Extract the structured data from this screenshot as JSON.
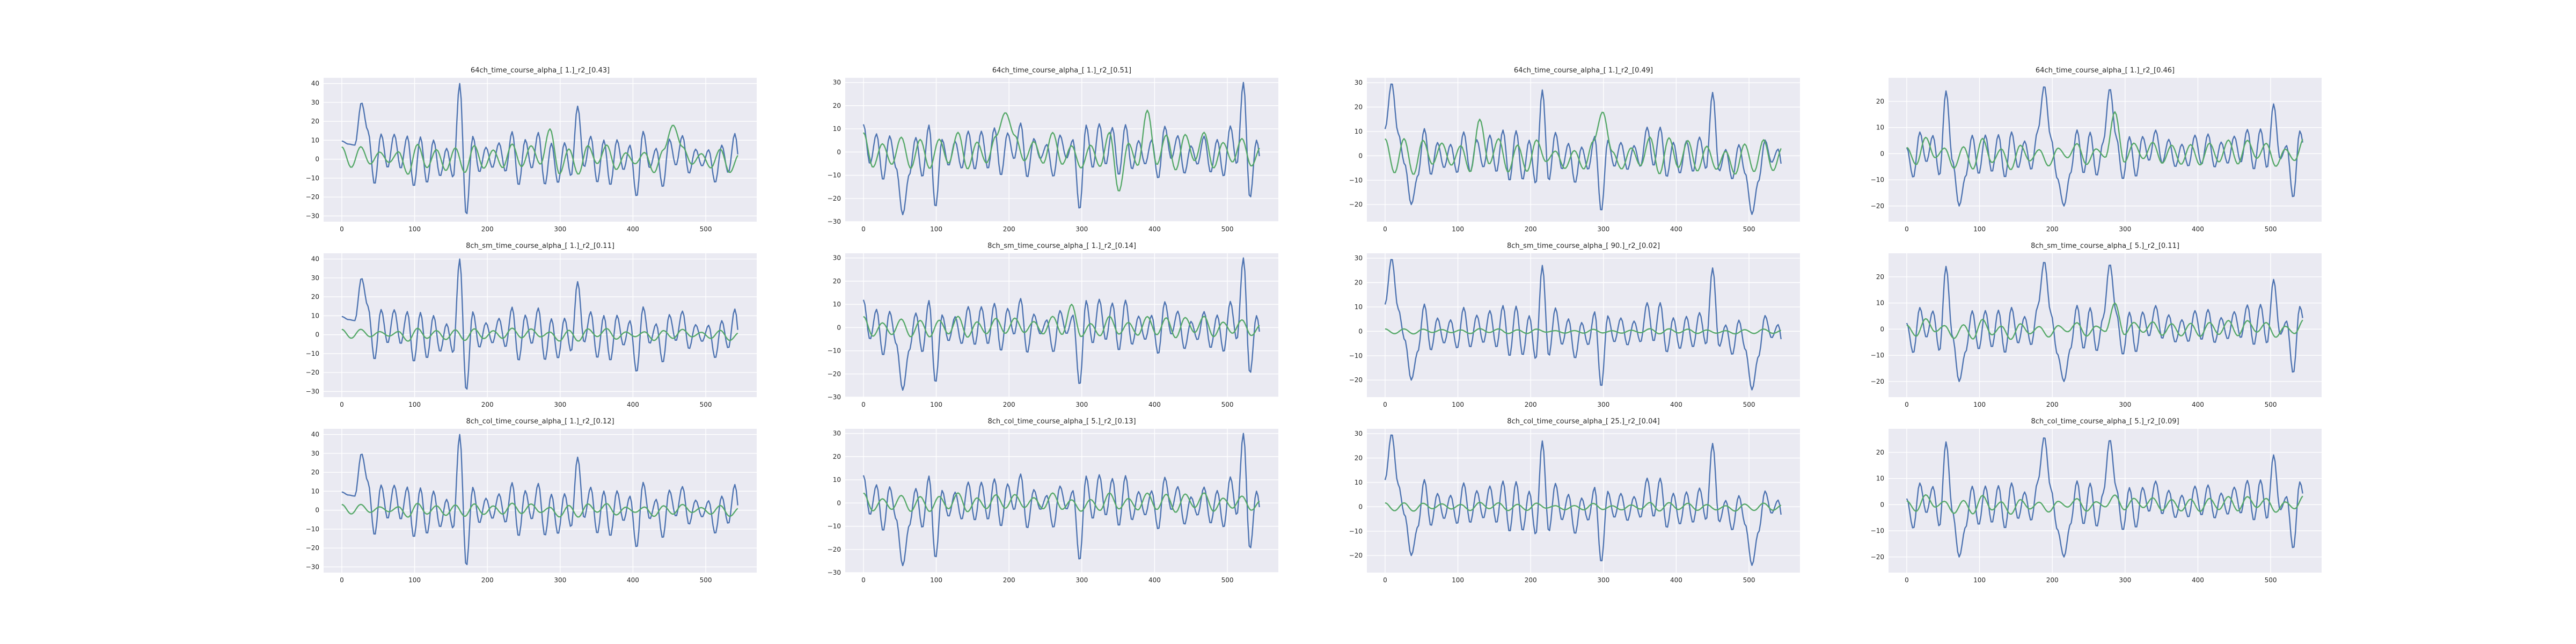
{
  "colors": {
    "blue": "#4c72b0",
    "green": "#55a868",
    "background": "#eaeaf2",
    "grid": "#ffffff"
  },
  "chart_data": [
    {
      "type": "line",
      "title": "64ch_time_course_alpha_[ 1.]_r2_[0.43]",
      "xlim": [
        0,
        545
      ],
      "ylim": [
        -33,
        43
      ],
      "xticks": [
        0,
        100,
        200,
        300,
        400,
        500
      ],
      "yticks": [
        -30,
        -20,
        -10,
        0,
        10,
        20,
        30,
        40
      ],
      "grid": true,
      "seed": 11,
      "blue_amp": 12,
      "green_amp": 6.5,
      "blue_peaks": [
        [
          5,
          8
        ],
        [
          30,
          30
        ],
        [
          160,
          40
        ],
        [
          167,
          -30
        ],
        [
          320,
          28
        ],
        [
          404,
          -20
        ]
      ],
      "green_peaks": [
        [
          280,
          16
        ],
        [
          460,
          18
        ]
      ]
    },
    {
      "type": "line",
      "title": "64ch_time_course_alpha_[ 1.]_r2_[0.51]",
      "xlim": [
        0,
        545
      ],
      "ylim": [
        -30,
        32
      ],
      "xticks": [
        0,
        100,
        200,
        300,
        400,
        500
      ],
      "yticks": [
        -30,
        -20,
        -10,
        0,
        10,
        20,
        30
      ],
      "grid": true,
      "seed": 23,
      "blue_amp": 10,
      "green_amp": 7,
      "blue_peaks": [
        [
          50,
          -27
        ],
        [
          100,
          -24
        ],
        [
          300,
          -25
        ],
        [
          520,
          30
        ],
        [
          530,
          -20
        ]
      ],
      "green_peaks": [
        [
          200,
          17
        ],
        [
          390,
          18
        ],
        [
          350,
          -17
        ]
      ]
    },
    {
      "type": "line",
      "title": "64ch_time_course_alpha_[ 1.]_r2_[0.49]",
      "xlim": [
        0,
        545
      ],
      "ylim": [
        -27,
        32
      ],
      "xticks": [
        0,
        100,
        200,
        300,
        400,
        500
      ],
      "yticks": [
        -20,
        -10,
        0,
        10,
        20,
        30
      ],
      "grid": true,
      "seed": 37,
      "blue_amp": 9.5,
      "green_amp": 6.5,
      "blue_peaks": [
        [
          10,
          30
        ],
        [
          40,
          -20
        ],
        [
          220,
          27
        ],
        [
          300,
          -23
        ],
        [
          450,
          26
        ],
        [
          500,
          -24
        ]
      ],
      "green_peaks": [
        [
          130,
          15
        ],
        [
          300,
          18
        ]
      ]
    },
    {
      "type": "line",
      "title": "64ch_time_course_alpha_[ 1.]_r2_[0.46]",
      "xlim": [
        0,
        545
      ],
      "ylim": [
        -26,
        29
      ],
      "xticks": [
        0,
        100,
        200,
        300,
        400,
        500
      ],
      "yticks": [
        -20,
        -10,
        0,
        10,
        20
      ],
      "grid": true,
      "seed": 41,
      "blue_amp": 8,
      "green_amp": 5,
      "blue_peaks": [
        [
          55,
          24
        ],
        [
          70,
          -20
        ],
        [
          190,
          26
        ],
        [
          220,
          -20
        ],
        [
          280,
          25
        ],
        [
          500,
          19
        ],
        [
          530,
          -17
        ]
      ],
      "green_peaks": [
        [
          280,
          16
        ]
      ]
    },
    {
      "type": "line",
      "title": "8ch_sm_time_course_alpha_[ 1.]_r2_[0.11]",
      "xlim": [
        0,
        545
      ],
      "ylim": [
        -33,
        43
      ],
      "xticks": [
        0,
        100,
        200,
        300,
        400,
        500
      ],
      "yticks": [
        -30,
        -20,
        -10,
        0,
        10,
        20,
        30,
        40
      ],
      "grid": true,
      "seed": 11,
      "blue_amp": 12,
      "green_amp": 2.8,
      "blue_peaks": [
        [
          5,
          8
        ],
        [
          30,
          30
        ],
        [
          160,
          40
        ],
        [
          167,
          -30
        ],
        [
          320,
          28
        ],
        [
          404,
          -20
        ]
      ],
      "green_peaks": []
    },
    {
      "type": "line",
      "title": "8ch_sm_time_course_alpha_[ 1.]_r2_[0.14]",
      "xlim": [
        0,
        545
      ],
      "ylim": [
        -30,
        32
      ],
      "xticks": [
        0,
        100,
        200,
        300,
        400,
        500
      ],
      "yticks": [
        -30,
        -20,
        -10,
        0,
        10,
        20,
        30
      ],
      "grid": true,
      "seed": 23,
      "blue_amp": 10,
      "green_amp": 4,
      "blue_peaks": [
        [
          50,
          -27
        ],
        [
          100,
          -24
        ],
        [
          300,
          -25
        ],
        [
          520,
          30
        ],
        [
          530,
          -20
        ]
      ],
      "green_peaks": [
        [
          290,
          10
        ]
      ]
    },
    {
      "type": "line",
      "title": "8ch_sm_time_course_alpha_[ 90.]_r2_[0.02]",
      "xlim": [
        0,
        545
      ],
      "ylim": [
        -27,
        32
      ],
      "xticks": [
        0,
        100,
        200,
        300,
        400,
        500
      ],
      "yticks": [
        -20,
        -10,
        0,
        10,
        20,
        30
      ],
      "grid": true,
      "seed": 37,
      "blue_amp": 9.5,
      "green_amp": 0.9,
      "blue_peaks": [
        [
          10,
          30
        ],
        [
          40,
          -20
        ],
        [
          220,
          27
        ],
        [
          300,
          -23
        ],
        [
          450,
          26
        ],
        [
          500,
          -24
        ]
      ],
      "green_peaks": []
    },
    {
      "type": "line",
      "title": "8ch_sm_time_course_alpha_[ 5.]_r2_[0.11]",
      "xlim": [
        0,
        545
      ],
      "ylim": [
        -26,
        29
      ],
      "xticks": [
        0,
        100,
        200,
        300,
        400,
        500
      ],
      "yticks": [
        -20,
        -10,
        0,
        10,
        20
      ],
      "grid": true,
      "seed": 41,
      "blue_amp": 8,
      "green_amp": 3.2,
      "blue_peaks": [
        [
          55,
          24
        ],
        [
          70,
          -20
        ],
        [
          190,
          26
        ],
        [
          220,
          -20
        ],
        [
          280,
          25
        ],
        [
          500,
          19
        ],
        [
          530,
          -17
        ]
      ],
      "green_peaks": [
        [
          280,
          10
        ]
      ]
    },
    {
      "type": "line",
      "title": "8ch_col_time_course_alpha_[ 1.]_r2_[0.12]",
      "xlim": [
        0,
        545
      ],
      "ylim": [
        -33,
        43
      ],
      "xticks": [
        0,
        100,
        200,
        300,
        400,
        500
      ],
      "yticks": [
        -30,
        -20,
        -10,
        0,
        10,
        20,
        30,
        40
      ],
      "grid": true,
      "seed": 11,
      "blue_amp": 12,
      "green_amp": 3,
      "blue_peaks": [
        [
          5,
          8
        ],
        [
          30,
          30
        ],
        [
          160,
          40
        ],
        [
          167,
          -30
        ],
        [
          320,
          28
        ],
        [
          404,
          -20
        ]
      ],
      "green_peaks": []
    },
    {
      "type": "line",
      "title": "8ch_col_time_course_alpha_[ 5.]_r2_[0.13]",
      "xlim": [
        0,
        545
      ],
      "ylim": [
        -30,
        32
      ],
      "xticks": [
        0,
        100,
        200,
        300,
        400,
        500
      ],
      "yticks": [
        -30,
        -20,
        -10,
        0,
        10,
        20,
        30
      ],
      "grid": true,
      "seed": 23,
      "blue_amp": 10,
      "green_amp": 3.6,
      "blue_peaks": [
        [
          50,
          -27
        ],
        [
          100,
          -24
        ],
        [
          300,
          -25
        ],
        [
          520,
          30
        ],
        [
          530,
          -20
        ]
      ],
      "green_peaks": []
    },
    {
      "type": "line",
      "title": "8ch_col_time_course_alpha_[ 25.]_r2_[0.04]",
      "xlim": [
        0,
        545
      ],
      "ylim": [
        -27,
        32
      ],
      "xticks": [
        0,
        100,
        200,
        300,
        400,
        500
      ],
      "yticks": [
        -20,
        -10,
        0,
        10,
        20,
        30
      ],
      "grid": true,
      "seed": 37,
      "blue_amp": 9.5,
      "green_amp": 1.5,
      "blue_peaks": [
        [
          10,
          30
        ],
        [
          40,
          -20
        ],
        [
          220,
          27
        ],
        [
          300,
          -23
        ],
        [
          450,
          26
        ],
        [
          500,
          -24
        ]
      ],
      "green_peaks": []
    },
    {
      "type": "line",
      "title": "8ch_col_time_course_alpha_[ 5.]_r2_[0.09]",
      "xlim": [
        0,
        545
      ],
      "ylim": [
        -26,
        29
      ],
      "xticks": [
        0,
        100,
        200,
        300,
        400,
        500
      ],
      "yticks": [
        -20,
        -10,
        0,
        10,
        20
      ],
      "grid": true,
      "seed": 41,
      "blue_amp": 8,
      "green_amp": 3,
      "blue_peaks": [
        [
          55,
          24
        ],
        [
          70,
          -20
        ],
        [
          190,
          26
        ],
        [
          220,
          -20
        ],
        [
          280,
          25
        ],
        [
          500,
          19
        ],
        [
          530,
          -17
        ]
      ],
      "green_peaks": []
    }
  ]
}
